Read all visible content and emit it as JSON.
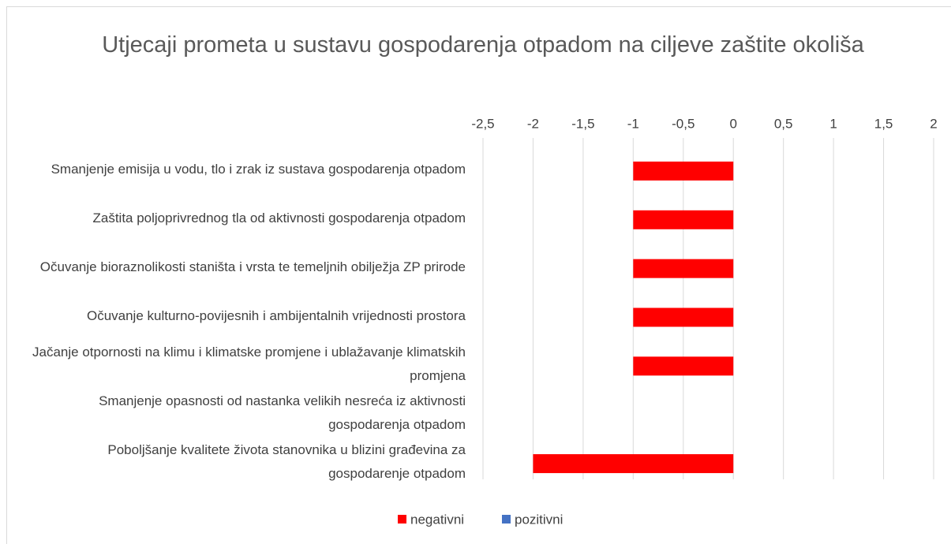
{
  "chart_data": {
    "type": "bar",
    "orientation": "horizontal",
    "title": "Utjecaji prometa u sustavu gospodarenja otpadom na ciljeve zaštite okoliša",
    "categories": [
      "Smanjenje emisija u vodu, tlo i zrak iz sustava gospodarenja otpadom",
      "Zaštita poljoprivrednog  tla od aktivnosti gospodarenja otpadom",
      "Očuvanje bioraznolikosti staništa i vrsta te temeljnih obilježja ZP prirode",
      "Očuvanje kulturno-povijesnih i ambijentalnih vrijednosti prostora",
      "Jačanje otpornosti na klimu i klimatske promjene i ublažavanje klimatskih promjena",
      "Smanjenje opasnosti od nastanka velikih nesreća iz aktivnosti gospodarenja otpadom",
      "Poboljšanje kvalitete života stanovnika u blizini građevina za gospodarenje otpadom"
    ],
    "series": [
      {
        "name": "negativni",
        "color": "#ff0000",
        "values": [
          -1,
          -1,
          -1,
          -1,
          -1,
          0,
          -2
        ]
      },
      {
        "name": "pozitivni",
        "color": "#4472c4",
        "values": [
          0,
          0,
          0,
          0,
          0,
          0,
          0
        ]
      }
    ],
    "xlim": [
      -2.5,
      2
    ],
    "xticks": [
      {
        "value": -2.5,
        "label": "-2,5"
      },
      -2,
      {
        "value": -1.5,
        "label": "-1,5"
      },
      -1,
      {
        "value": -0.5,
        "label": "-0,5"
      },
      0,
      {
        "value": 0.5,
        "label": "0,5"
      },
      1,
      {
        "value": 1.5,
        "label": "1,5"
      },
      2
    ],
    "grid": true,
    "legend": "bottom"
  }
}
